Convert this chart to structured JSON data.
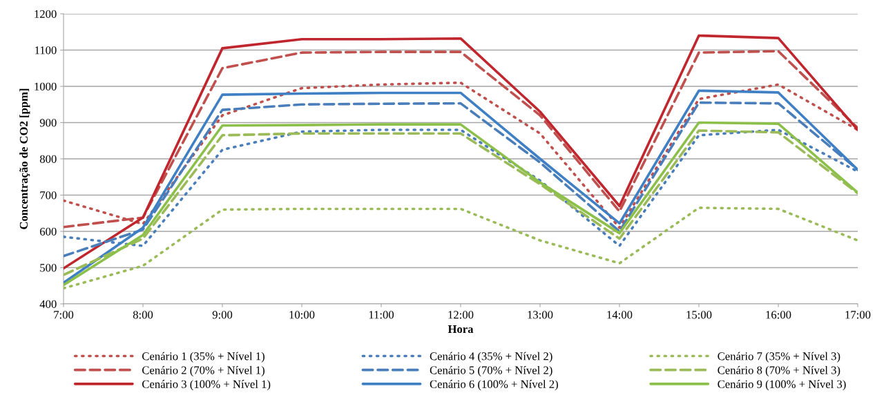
{
  "chart_data": {
    "type": "line",
    "xlabel": "Hora",
    "ylabel": "Concentração de CO2 [ppm]",
    "categories": [
      "7:00",
      "8:00",
      "9:00",
      "10:00",
      "11:00",
      "12:00",
      "13:00",
      "14:00",
      "15:00",
      "16:00",
      "17:00"
    ],
    "ylim": [
      400,
      1200
    ],
    "yticks": [
      400,
      500,
      600,
      700,
      800,
      900,
      1000,
      1100,
      1200
    ],
    "grid": "y",
    "legend": "bottom",
    "marker": "none",
    "series": [
      {
        "name": "Cenário 1 (35% + Nível 1)",
        "color": "#c0504d",
        "line_style": "dotted",
        "values": [
          685,
          620,
          920,
          995,
          1005,
          1010,
          870,
          610,
          965,
          1005,
          880
        ]
      },
      {
        "name": "Cenário 2 (70% + Nível 1)",
        "color": "#c0504d",
        "line_style": "dashed",
        "values": [
          612,
          638,
          1050,
          1093,
          1095,
          1095,
          920,
          655,
          1093,
          1097,
          885
        ]
      },
      {
        "name": "Cenário 3 (100% + Nível 1)",
        "color": "#c0262d",
        "line_style": "solid",
        "values": [
          498,
          638,
          1105,
          1130,
          1130,
          1132,
          930,
          670,
          1140,
          1133,
          880
        ]
      },
      {
        "name": "Cenário 4 (35% + Nível 2)",
        "color": "#4a7ebb",
        "line_style": "dotted",
        "values": [
          585,
          560,
          825,
          875,
          880,
          880,
          740,
          560,
          865,
          880,
          765
        ]
      },
      {
        "name": "Cenário 5 (70% + Nível 2)",
        "color": "#4a7ebb",
        "line_style": "dashed",
        "values": [
          532,
          605,
          935,
          950,
          952,
          953,
          790,
          600,
          955,
          953,
          770
        ]
      },
      {
        "name": "Cenário 6 (100% + Nível 2)",
        "color": "#3f7fc4",
        "line_style": "solid",
        "values": [
          458,
          610,
          977,
          980,
          982,
          982,
          800,
          622,
          988,
          983,
          770
        ]
      },
      {
        "name": "Cenário 7 (35% + Nível 3)",
        "color": "#9bbb59",
        "line_style": "dotted",
        "values": [
          443,
          505,
          660,
          662,
          662,
          662,
          575,
          512,
          665,
          662,
          575
        ]
      },
      {
        "name": "Cenário 8 (70% + Nível 3)",
        "color": "#9bbb59",
        "line_style": "dashed",
        "values": [
          480,
          580,
          865,
          870,
          870,
          870,
          730,
          580,
          878,
          873,
          705
        ]
      },
      {
        "name": "Cenário 9 (100% + Nível 3)",
        "color": "#8dc04a",
        "line_style": "solid",
        "values": [
          452,
          590,
          892,
          893,
          895,
          895,
          735,
          595,
          900,
          897,
          707
        ]
      }
    ]
  }
}
